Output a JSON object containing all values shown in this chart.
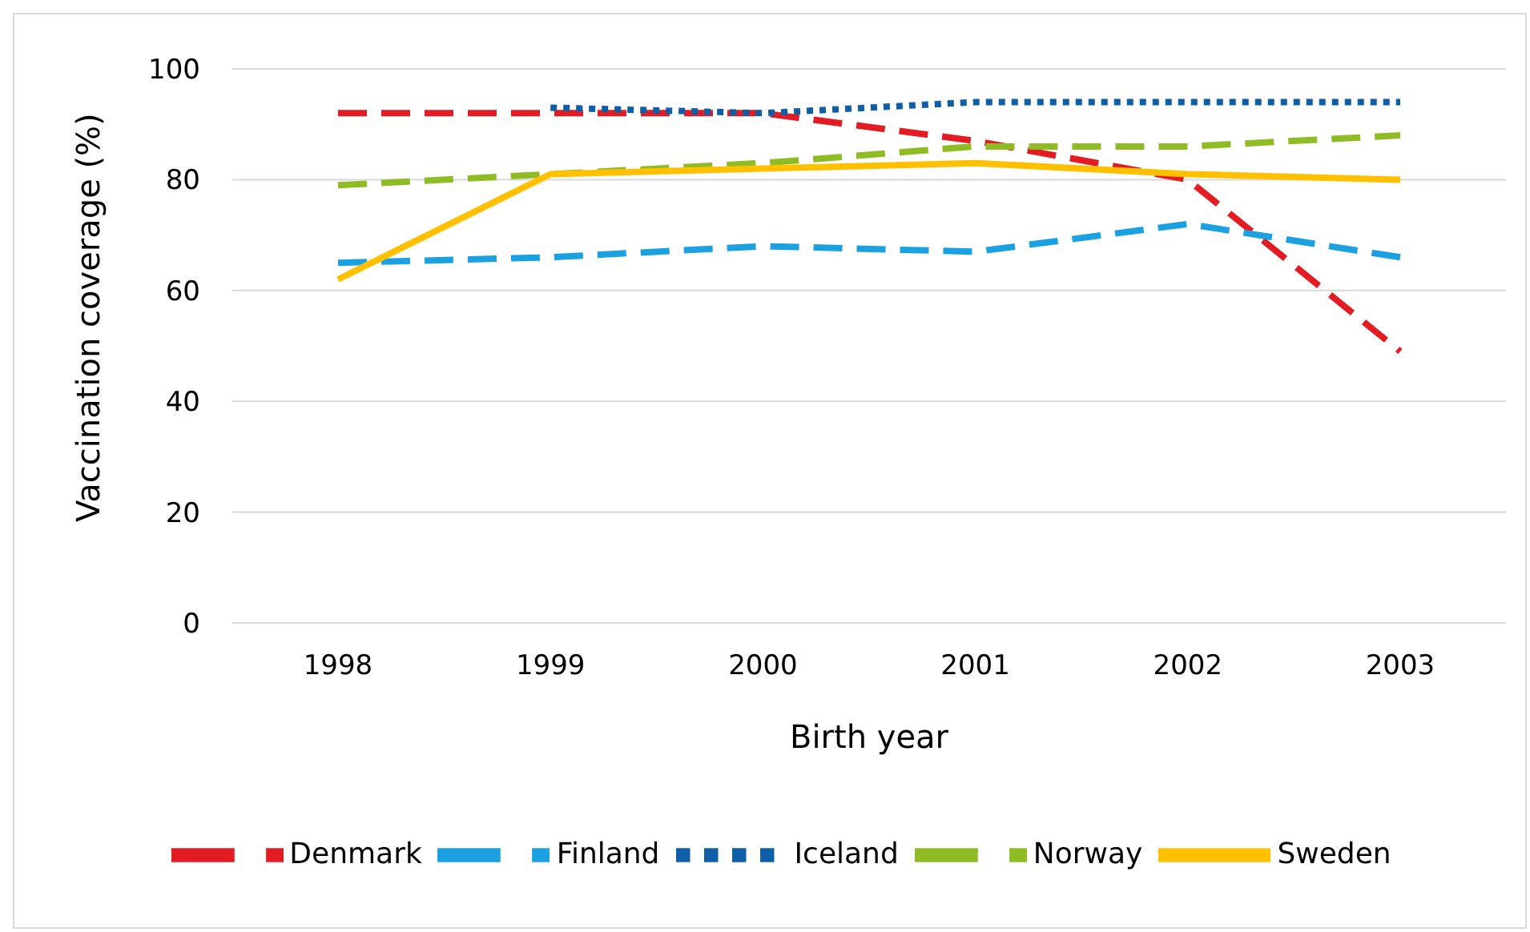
{
  "chart_data": {
    "type": "line",
    "xlabel": "Birth year",
    "ylabel": "Vaccination coverage (%)",
    "categories": [
      "1998",
      "1999",
      "2000",
      "2001",
      "2002",
      "2003"
    ],
    "series": [
      {
        "name": "Denmark",
        "color": "#e31b23",
        "line_style": "dashed",
        "values": [
          92,
          92,
          92,
          87,
          80,
          49
        ]
      },
      {
        "name": "Finland",
        "color": "#1ba1e2",
        "line_style": "dashed",
        "values": [
          65,
          66,
          68,
          67,
          72,
          66
        ]
      },
      {
        "name": "Iceland",
        "color": "#0f5fa8",
        "line_style": "dotted",
        "values": [
          null,
          93,
          92,
          94,
          94,
          94
        ]
      },
      {
        "name": "Norway",
        "color": "#8fbc25",
        "line_style": "dashed",
        "values": [
          79,
          81,
          83,
          86,
          86,
          88
        ]
      },
      {
        "name": "Sweden",
        "color": "#ffc000",
        "line_style": "solid",
        "values": [
          62,
          81,
          82,
          83,
          81,
          80
        ]
      }
    ],
    "ylim": [
      0,
      100
    ],
    "yticks": [
      0,
      20,
      40,
      60,
      80,
      100
    ],
    "grid": "y",
    "legend": "bottom",
    "marker": "none"
  }
}
